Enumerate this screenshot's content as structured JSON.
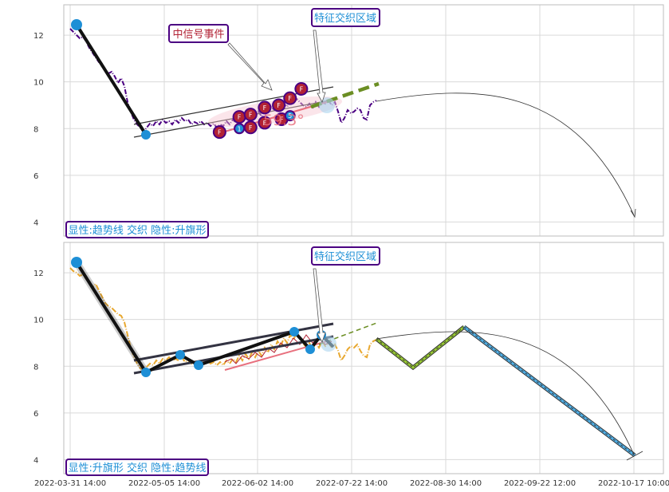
{
  "chart_data": [
    {
      "type": "line",
      "panel": "top",
      "ylim": [
        3.4,
        13.3
      ],
      "yticks": [
        4,
        6,
        8,
        10,
        12
      ],
      "xtick_labels": [],
      "annotations": {
        "bottom_label": "显性:趋势线 交织 隐性:升旗形",
        "signal_box": "中信号事件",
        "feature_box": "特征交织区域",
        "angle_label": "59.3°"
      },
      "price_series_color": "#4b0082",
      "accent_colors": {
        "marker": "#1e8fd6",
        "event": "#b22234",
        "forecast": "#6b8e23",
        "trend": "#333333"
      },
      "event_markers": [
        {
          "x": 0.265,
          "y": 7.85,
          "label": "F"
        },
        {
          "x": 0.3,
          "y": 8.5,
          "label": "F"
        },
        {
          "x": 0.3,
          "y": 8.0,
          "label": "1"
        },
        {
          "x": 0.32,
          "y": 8.6,
          "label": "F"
        },
        {
          "x": 0.32,
          "y": 8.05,
          "label": "F"
        },
        {
          "x": 0.345,
          "y": 8.9,
          "label": "F"
        },
        {
          "x": 0.345,
          "y": 8.25,
          "label": "F"
        },
        {
          "x": 0.37,
          "y": 9.0,
          "label": "F"
        },
        {
          "x": 0.375,
          "y": 8.4,
          "label": "F"
        },
        {
          "x": 0.39,
          "y": 9.3,
          "label": "F"
        },
        {
          "x": 0.39,
          "y": 8.55,
          "label": "5"
        },
        {
          "x": 0.41,
          "y": 9.7,
          "label": "F"
        }
      ]
    },
    {
      "type": "line",
      "panel": "bottom",
      "ylim": [
        3.4,
        13.3
      ],
      "yticks": [
        4,
        6,
        8,
        10,
        12
      ],
      "xtick_labels": [
        "2022-03-31 14:00",
        "2022-05-05 14:00",
        "2022-06-02 14:00",
        "2022-07-22 14:00",
        "2022-08-30 14:00",
        "2022-09-22 12:00",
        "2022-10-17 10:00"
      ],
      "annotations": {
        "bottom_label": "显性:升旗形 交织 隐性:趋势线",
        "feature_box": "特征交织区域"
      },
      "price_series_color": "#e8a830",
      "zigzag_points": [
        {
          "x": 0.0,
          "y": 12.5
        },
        {
          "x": 0.14,
          "y": 7.7
        },
        {
          "x": 0.2,
          "y": 8.5
        },
        {
          "x": 0.24,
          "y": 8.05
        },
        {
          "x": 0.42,
          "y": 9.5
        },
        {
          "x": 0.45,
          "y": 8.75
        },
        {
          "x": 0.475,
          "y": 9.35
        },
        {
          "x": 0.49,
          "y": 8.85
        }
      ],
      "forecast_points": [
        {
          "x": 0.565,
          "y": 9.2
        },
        {
          "x": 0.64,
          "y": 7.95
        },
        {
          "x": 0.73,
          "y": 9.7
        },
        {
          "x": 1.0,
          "y": 4.1
        }
      ]
    }
  ]
}
